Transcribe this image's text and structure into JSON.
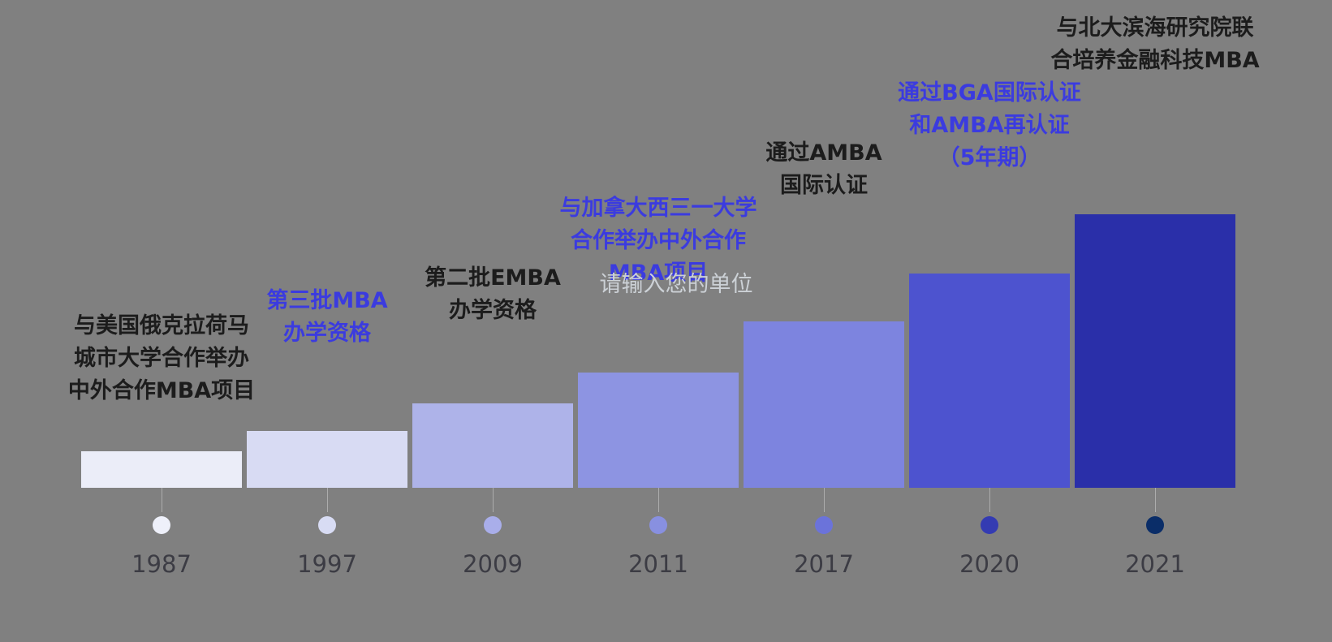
{
  "canvas": {
    "background": "#808080"
  },
  "watermark": {
    "text": "请输入您的单位",
    "color": "#ccd1d6"
  },
  "chart_data": {
    "type": "bar",
    "categories": [
      "1987",
      "1997",
      "2009",
      "2011",
      "2017",
      "2020",
      "2021"
    ],
    "values": [
      45,
      70,
      104,
      142,
      205,
      264,
      337
    ],
    "ylim": [
      0,
      360
    ],
    "grid": false,
    "legend": false,
    "bar_colors": [
      "#ebedf8",
      "#d8dbf3",
      "#aeb3e9",
      "#8d94e2",
      "#7d84df",
      "#4d53cf",
      "#2a2fa9"
    ],
    "dot_colors": [
      "#eef0fa",
      "#d8dcf4",
      "#a9aeea",
      "#8890e0",
      "#6b73da",
      "#343bb2",
      "#0a2d68"
    ],
    "year_label_color": "#3c3c44",
    "tick_color": "rgba(255,255,255,0.35)",
    "annotation_colors": {
      "dark": "#1c1c1c",
      "blue": "#3b3bdf"
    },
    "annotations": [
      {
        "year": "1987",
        "color": "#1c1c1c",
        "lines": [
          "与美国俄克拉荷马",
          "城市大学合作举办",
          "中外合作MBA项目"
        ]
      },
      {
        "year": "1997",
        "color": "#3b3bdf",
        "lines": [
          "第三批MBA",
          "办学资格"
        ]
      },
      {
        "year": "2009",
        "color": "#1c1c1c",
        "lines": [
          "第二批EMBA",
          "办学资格"
        ]
      },
      {
        "year": "2011",
        "color": "#3b3bdf",
        "lines": [
          "与加拿大西三一大学",
          "合作举办中外合作",
          "MBA项目"
        ]
      },
      {
        "year": "2017",
        "color": "#1c1c1c",
        "lines": [
          "通过AMBA",
          "国际认证"
        ]
      },
      {
        "year": "2020",
        "color": "#3b3bdf",
        "lines": [
          "通过BGA国际认证",
          "和AMBA再认证",
          "（5年期）"
        ]
      },
      {
        "year": "2021",
        "color": "#1c1c1c",
        "lines": [
          "与北大滨海研究院联",
          "合培养金融科技MBA"
        ]
      }
    ]
  }
}
